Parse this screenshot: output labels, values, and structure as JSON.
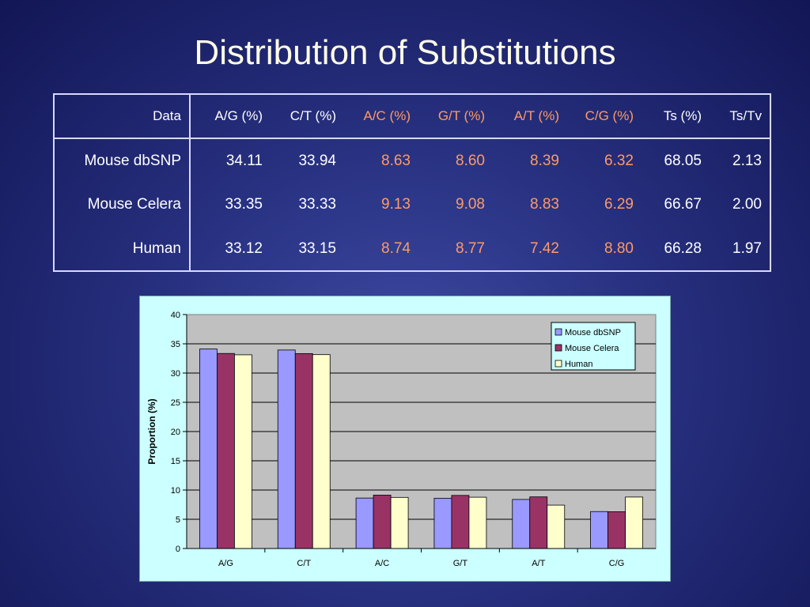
{
  "title": "Distribution of Substitutions",
  "table": {
    "headers": [
      "Data",
      "A/G (%)",
      "C/T (%)",
      "A/C (%)",
      "G/T (%)",
      "A/T (%)",
      "C/G (%)",
      "Ts (%)",
      "Ts/Tv"
    ],
    "rows": [
      {
        "label": "Mouse dbSNP",
        "values": [
          "34.11",
          "33.94",
          "8.63",
          "8.60",
          "8.39",
          "6.32",
          "68.05",
          "2.13"
        ]
      },
      {
        "label": "Mouse Celera",
        "values": [
          "33.35",
          "33.33",
          "9.13",
          "9.08",
          "8.83",
          "6.29",
          "66.67",
          "2.00"
        ]
      },
      {
        "label": "Human",
        "values": [
          "33.12",
          "33.15",
          "8.74",
          "8.77",
          "7.42",
          "8.80",
          "66.28",
          "1.97"
        ]
      }
    ]
  },
  "colors": {
    "transversion_text": "#ff9a66",
    "series": [
      "#9999ff",
      "#993366",
      "#ffffcc"
    ],
    "plot_background": "#c0c0c0",
    "chart_background": "#ccffff"
  },
  "chart_data": {
    "type": "bar",
    "categories": [
      "A/G",
      "C/T",
      "A/C",
      "G/T",
      "A/T",
      "C/G"
    ],
    "series": [
      {
        "name": "Mouse dbSNP",
        "values": [
          34.11,
          33.94,
          8.63,
          8.6,
          8.39,
          6.32
        ]
      },
      {
        "name": "Mouse Celera",
        "values": [
          33.35,
          33.33,
          9.13,
          9.08,
          8.83,
          6.29
        ]
      },
      {
        "name": "Human",
        "values": [
          33.12,
          33.15,
          8.74,
          8.77,
          7.42,
          8.8
        ]
      }
    ],
    "ylabel": "Proportion (%)",
    "xlabel": "",
    "ylim": [
      0,
      40
    ],
    "yticks": [
      "0",
      "5",
      "10",
      "15",
      "20",
      "25",
      "30",
      "35",
      "40"
    ],
    "grid": true,
    "legend_position": "top-right"
  }
}
